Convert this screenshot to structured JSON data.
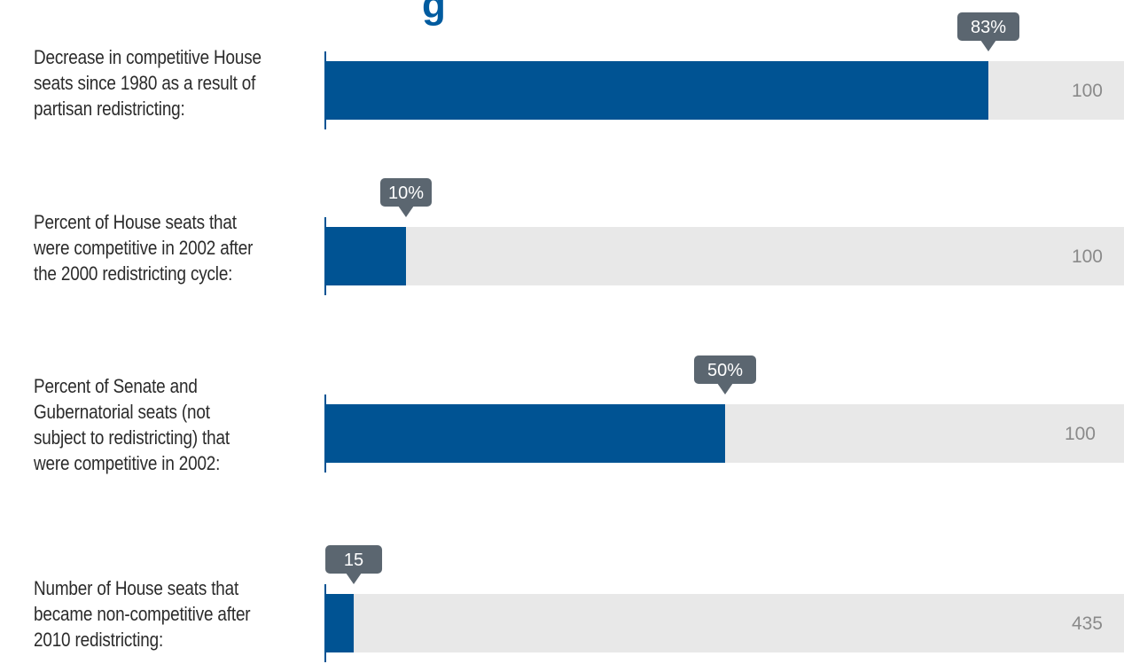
{
  "chart_data": {
    "type": "bar",
    "orientation": "horizontal",
    "colors": {
      "bar": "#005393",
      "track": "#e8e8e8",
      "callout": "#5b6670",
      "axis": "#005393"
    },
    "rows": [
      {
        "label": "Decrease in competitive House seats since 1980 as a result of partisan redistricting:",
        "value": 83,
        "max": 100,
        "value_label": "83%",
        "max_label": "100"
      },
      {
        "label": "Percent of House seats that were competitive in 2002 after the 2000 redistricting cycle:",
        "value": 10,
        "max": 100,
        "value_label": "10%",
        "max_label": "100"
      },
      {
        "label": "Percent of Senate and Gubernatorial seats (not subject to redistricting) that were competitive in 2002:",
        "value": 50,
        "max": 100,
        "value_label": "50%",
        "max_label": "100"
      },
      {
        "label": "Number of House seats that became non-competitive after 2010 redistricting:",
        "value": 15,
        "max": 435,
        "value_label": "15",
        "max_label": "435"
      }
    ]
  }
}
